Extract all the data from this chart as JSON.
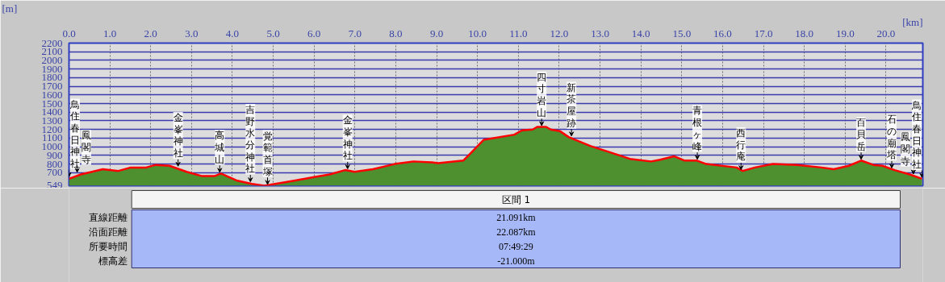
{
  "chart_data": {
    "type": "area",
    "xlabel": "[km]",
    "ylabel": "[m]",
    "x": [
      0.0,
      0.29,
      0.83,
      1.21,
      1.51,
      1.89,
      2.12,
      2.46,
      2.88,
      3.26,
      3.56,
      3.72,
      4.1,
      4.48,
      4.78,
      4.93,
      5.54,
      6.0,
      6.38,
      6.76,
      6.99,
      7.44,
      7.97,
      8.43,
      8.88,
      9.04,
      9.65,
      9.78,
      10.15,
      10.9,
      11.09,
      11.35,
      11.46,
      11.68,
      11.79,
      12.02,
      12.24,
      12.76,
      13.28,
      13.73,
      14.25,
      14.47,
      14.81,
      15.07,
      15.37,
      15.6,
      16.34,
      16.49,
      16.79,
      17.23,
      17.83,
      18.42,
      18.72,
      19.09,
      19.39,
      19.69,
      19.91,
      20.21,
      20.58,
      20.88
    ],
    "series": [
      {
        "color": "#4e8f2f",
        "values": [
          630,
          680,
          740,
          720,
          760,
          760,
          790,
          780,
          710,
          660,
          660,
          690,
          610,
          570,
          550,
          560,
          610,
          650,
          680,
          730,
          710,
          740,
          800,
          830,
          820,
          810,
          840,
          900,
          1080,
          1140,
          1190,
          1200,
          1230,
          1230,
          1200,
          1180,
          1110,
          1010,
          930,
          860,
          830,
          850,
          890,
          840,
          840,
          800,
          760,
          720,
          760,
          800,
          790,
          760,
          740,
          780,
          840,
          790,
          780,
          730,
          680,
          630
        ]
      }
    ],
    "xlim": [
      0,
      20.9
    ],
    "ylim": [
      549,
      2200
    ],
    "xticks": [
      {
        "value": 0,
        "label": "0.0"
      },
      {
        "value": 1,
        "label": "1.0"
      },
      {
        "value": 2,
        "label": "2.0"
      },
      {
        "value": 3,
        "label": "3.0"
      },
      {
        "value": 4,
        "label": "4.0"
      },
      {
        "value": 5,
        "label": "5.0"
      },
      {
        "value": 6,
        "label": "6.0"
      },
      {
        "value": 7,
        "label": "7.0"
      },
      {
        "value": 8,
        "label": "8.0"
      },
      {
        "value": 9,
        "label": "9.0"
      },
      {
        "value": 10,
        "label": "10.0"
      },
      {
        "value": 11,
        "label": "11.0"
      },
      {
        "value": 12,
        "label": "12.0"
      },
      {
        "value": 13,
        "label": "13.0"
      },
      {
        "value": 14,
        "label": "14.0"
      },
      {
        "value": 15,
        "label": "15.0"
      },
      {
        "value": 16,
        "label": "16.0"
      },
      {
        "value": 17,
        "label": "17.0"
      },
      {
        "value": 18,
        "label": "18.0"
      },
      {
        "value": 19,
        "label": "19.0"
      },
      {
        "value": 20,
        "label": "20.0"
      }
    ],
    "yticks": [
      549,
      700,
      800,
      900,
      1000,
      1100,
      1200,
      1300,
      1400,
      1500,
      1600,
      1700,
      1800,
      1900,
      2000,
      2100,
      2200
    ],
    "grid": true,
    "annotations": [
      {
        "text": "鳥住春日神社",
        "x": 0.0,
        "y": 640
      },
      {
        "text": "鳳閣寺",
        "x": 0.2,
        "y": 690
      },
      {
        "text": "金峯神社",
        "x": 2.67,
        "y": 760
      },
      {
        "text": "高城山",
        "x": 3.69,
        "y": 690
      },
      {
        "text": "吉野水分神社",
        "x": 4.44,
        "y": 580
      },
      {
        "text": "覚範首塚",
        "x": 4.86,
        "y": 550
      },
      {
        "text": "金峯神社",
        "x": 6.82,
        "y": 730
      },
      {
        "text": "四寸岩山",
        "x": 11.57,
        "y": 1230
      },
      {
        "text": "新茶屋跡",
        "x": 12.3,
        "y": 1110
      },
      {
        "text": "青根ヶ峰",
        "x": 15.38,
        "y": 840
      },
      {
        "text": "西行庵",
        "x": 16.45,
        "y": 720
      },
      {
        "text": "百貝岳",
        "x": 19.39,
        "y": 840
      },
      {
        "text": "石の廟塔",
        "x": 20.14,
        "y": 740
      },
      {
        "text": "鳳閣寺",
        "x": 20.67,
        "y": 670
      },
      {
        "text": "鳥住春日神社",
        "x": 20.88,
        "y": 630
      },
      "区間 1",
      "直線距離",
      "21.091km",
      "沿面距離",
      "22.087km",
      "所要時間",
      "07:49:29",
      "標高差",
      "-21.000m"
    ]
  }
}
